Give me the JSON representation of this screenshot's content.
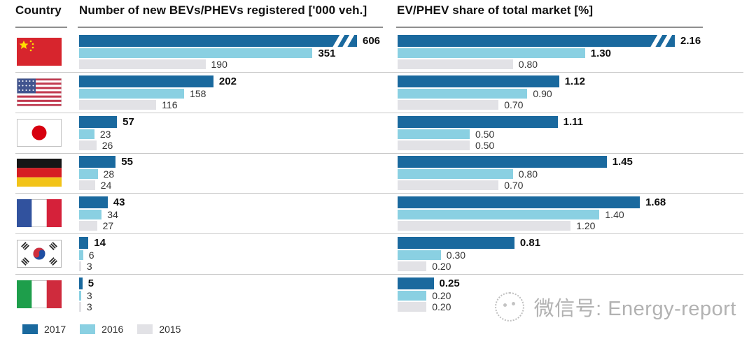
{
  "header": {
    "country_label": "Country",
    "left_title": "Number of new BEVs/PHEVs registered ['000 veh.]",
    "right_title": "EV/PHEV share of total market [%]"
  },
  "legend": [
    {
      "label": "2017",
      "color": "#1a699e"
    },
    {
      "label": "2016",
      "color": "#8ad0e2"
    },
    {
      "label": "2015",
      "color": "#e2e2e6"
    }
  ],
  "colors": {
    "bar_2017": "#1a699e",
    "bar_2016": "#8ad0e2",
    "bar_2015": "#e2e2e6",
    "row_separator": "#c9c9c9",
    "header_rule": "#8e8e8e"
  },
  "watermark": {
    "text": "微信号: Energy-report",
    "logo": "wechat-logo-icon"
  },
  "rows": [
    {
      "id": "china",
      "name": "China",
      "flag_icon": "china-flag-icon",
      "left": [
        "606",
        "351",
        "190"
      ],
      "right": [
        "2.16",
        "1.30",
        "0.80"
      ],
      "bold_count": 2
    },
    {
      "id": "usa",
      "name": "USA",
      "flag_icon": "usa-flag-icon",
      "left": [
        "202",
        "158",
        "116"
      ],
      "right": [
        "1.12",
        "0.90",
        "0.70"
      ],
      "bold_count": 1
    },
    {
      "id": "japan",
      "name": "Japan",
      "flag_icon": "japan-flag-icon",
      "left": [
        "57",
        "23",
        "26"
      ],
      "right": [
        "1.11",
        "0.50",
        "0.50"
      ],
      "bold_count": 1
    },
    {
      "id": "germany",
      "name": "Germany",
      "flag_icon": "germany-flag-icon",
      "left": [
        "55",
        "28",
        "24"
      ],
      "right": [
        "1.45",
        "0.80",
        "0.70"
      ],
      "bold_count": 1
    },
    {
      "id": "france",
      "name": "France",
      "flag_icon": "france-flag-icon",
      "left": [
        "43",
        "34",
        "27"
      ],
      "right": [
        "1.68",
        "1.40",
        "1.20"
      ],
      "bold_count": 1
    },
    {
      "id": "south-korea",
      "name": "South Korea",
      "flag_icon": "south-korea-flag-icon",
      "left": [
        "14",
        "6",
        "3"
      ],
      "right": [
        "0.81",
        "0.30",
        "0.20"
      ],
      "bold_count": 1
    },
    {
      "id": "italy",
      "name": "Italy",
      "flag_icon": "italy-flag-icon",
      "left": [
        "5",
        "3",
        "3"
      ],
      "right": [
        "0.25",
        "0.20",
        "0.20"
      ],
      "bold_count": 1
    }
  ],
  "chart_data": [
    {
      "type": "bar",
      "orientation": "horizontal",
      "title": "Number of new BEVs/PHEVs registered ['000 veh.]",
      "unit": "'000 veh.",
      "categories": [
        "China",
        "USA",
        "Japan",
        "Germany",
        "France",
        "South Korea",
        "Italy"
      ],
      "series": [
        {
          "name": "2017",
          "values": [
            606,
            202,
            57,
            55,
            43,
            14,
            5
          ]
        },
        {
          "name": "2016",
          "values": [
            351,
            158,
            23,
            28,
            34,
            6,
            3
          ]
        },
        {
          "name": "2015",
          "values": [
            190,
            116,
            26,
            24,
            27,
            3,
            3
          ]
        }
      ],
      "axis_break": "China 2017 bar is truncated with a break mark (//)",
      "grid": false,
      "legend_position": "bottom-left",
      "value_labels": "at bar end"
    },
    {
      "type": "bar",
      "orientation": "horizontal",
      "title": "EV/PHEV share of total market [%]",
      "unit": "%",
      "categories": [
        "China",
        "USA",
        "Japan",
        "Germany",
        "France",
        "South Korea",
        "Italy"
      ],
      "series": [
        {
          "name": "2017",
          "values": [
            2.16,
            1.12,
            1.11,
            1.45,
            1.68,
            0.81,
            0.25
          ]
        },
        {
          "name": "2016",
          "values": [
            1.3,
            0.9,
            0.5,
            0.8,
            1.4,
            0.3,
            0.2
          ]
        },
        {
          "name": "2015",
          "values": [
            0.8,
            0.7,
            0.5,
            0.7,
            1.2,
            0.2,
            0.2
          ]
        }
      ],
      "axis_break": "China 2017 bar is truncated with a break mark (//)",
      "grid": false,
      "legend_position": "bottom-left",
      "value_labels": "at bar end"
    }
  ]
}
